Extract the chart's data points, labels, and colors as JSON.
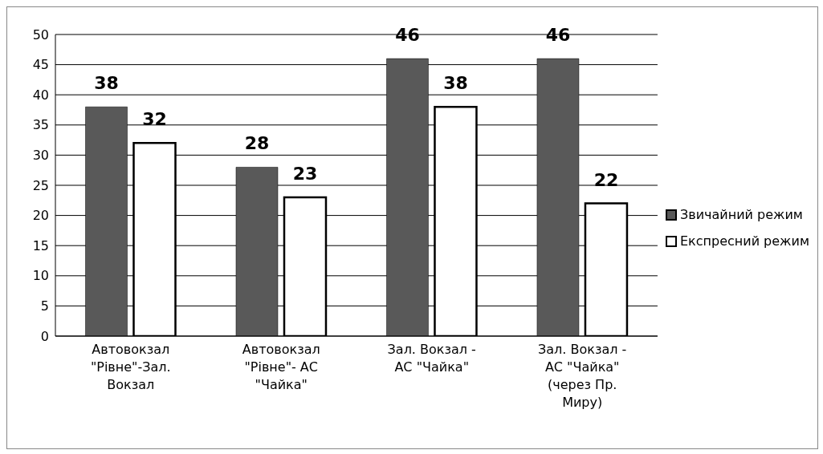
{
  "chart_data": {
    "type": "bar",
    "categories": [
      "Автовокзал \"Рівне\"-Зал. Вокзал",
      "Автовокзал \"Рівне\"- АС \"Чайка\"",
      "Зал. Вокзал - АС \"Чайка\"",
      "Зал. Вокзал - АС \"Чайка\" (через Пр. Миру)"
    ],
    "series": [
      {
        "name": "Звичайний режим",
        "color": "#595959",
        "values": [
          38,
          28,
          46,
          46
        ]
      },
      {
        "name": "Експресний режим",
        "color": "#ffffff",
        "values": [
          32,
          23,
          38,
          22
        ]
      }
    ],
    "ylim": [
      0,
      50
    ],
    "yticks": [
      0,
      5,
      10,
      15,
      20,
      25,
      30,
      35,
      40,
      45,
      50
    ],
    "grid": "y",
    "legend": "right",
    "data_labels": true
  }
}
